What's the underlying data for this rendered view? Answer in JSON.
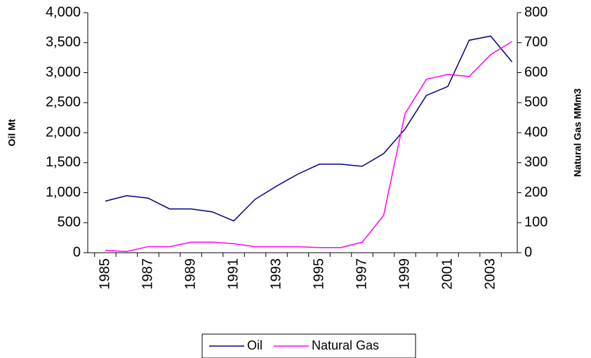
{
  "chart_data": {
    "type": "line",
    "categories": [
      1985,
      null,
      1987,
      null,
      1989,
      null,
      1991,
      null,
      1993,
      null,
      1995,
      null,
      1997,
      null,
      1999,
      null,
      2001,
      null,
      2003,
      null
    ],
    "y_label": "Oil Mt",
    "y2_label": "Natural Gas MMm3",
    "ylim": [
      0,
      4000
    ],
    "yticks": [
      0,
      {
        "value": 500,
        "label": "500"
      },
      {
        "value": 1000,
        "label": "1,000"
      },
      {
        "value": 1500,
        "label": "1,500"
      },
      {
        "value": 2000,
        "label": "2,000"
      },
      {
        "value": 2500,
        "label": "2,500"
      },
      {
        "value": 3000,
        "label": "3,000"
      },
      {
        "value": 3500,
        "label": "3,500"
      },
      {
        "value": 4000,
        "label": "4,000"
      }
    ],
    "y2lim": [
      0,
      800
    ],
    "y2ticks": [
      0,
      100,
      200,
      300,
      400,
      500,
      600,
      700,
      800
    ],
    "legend": "bottom",
    "series": [
      {
        "name": "Oil",
        "color": "#000080",
        "values": [
          860,
          950,
          910,
          730,
          730,
          680,
          530,
          890,
          1110,
          1310,
          1475,
          1475,
          1440,
          1650,
          2060,
          2620,
          2770,
          3540,
          3610,
          3180
        ]
      },
      {
        "name": "Natural Gas",
        "color": "#ff00ff",
        "axis": "y2",
        "values": [
          8,
          4,
          20,
          20,
          35,
          35,
          30,
          20,
          20,
          20,
          17,
          17,
          35,
          124,
          463,
          578,
          594,
          587,
          660,
          704
        ]
      }
    ]
  }
}
